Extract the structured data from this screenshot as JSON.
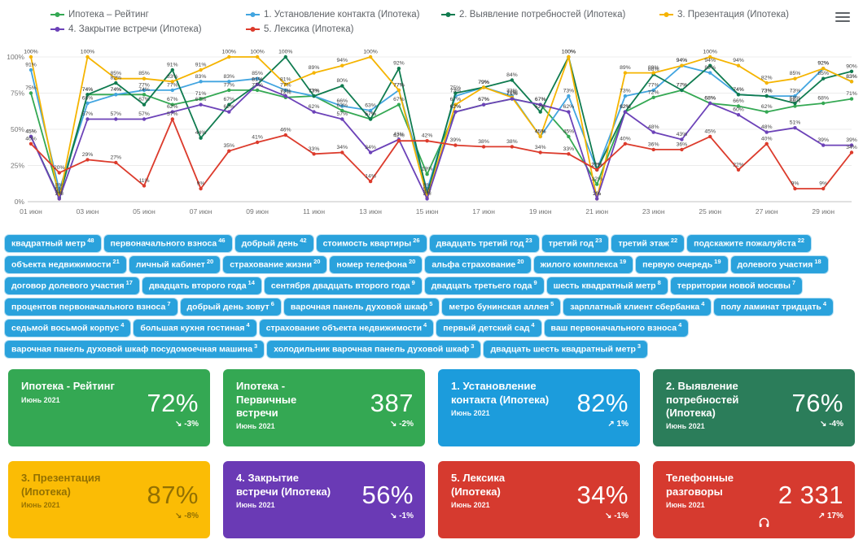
{
  "header": {
    "menu_icon": "hamburger-menu"
  },
  "chart_data": {
    "type": "line",
    "title": "",
    "xlabel": "",
    "ylabel": "",
    "ylim": [
      0,
      100
    ],
    "grid": true,
    "legend_position": "top",
    "y_tick_labels": [
      "0%",
      "25%",
      "50%",
      "75%",
      "100%"
    ],
    "x_tick_labels": [
      "01 июн",
      "03 июн",
      "05 июн",
      "07 июн",
      "09 июн",
      "11 июн",
      "13 июн",
      "15 июн",
      "17 июн",
      "19 июн",
      "21 июн",
      "23 июн",
      "25 июн",
      "27 июн",
      "29 июн"
    ],
    "series": [
      {
        "name": "Ипотека – Рейтинг",
        "color": "#34a853",
        "values": [
          75,
          5,
          74,
          74,
          74,
          67,
          71,
          77,
          77,
          72,
          73,
          63,
          57,
          67,
          19,
          62,
          67,
          71,
          67,
          45,
          12,
          62,
          72,
          77,
          68,
          66,
          62,
          66,
          68,
          71
        ]
      },
      {
        "name": "1. Установление контакта (Ипотека)",
        "color": "#42a5e0",
        "values": [
          91,
          8,
          68,
          74,
          77,
          77,
          83,
          83,
          85,
          77,
          73,
          66,
          63,
          77,
          8,
          73,
          79,
          73,
          45,
          73,
          22,
          73,
          77,
          94,
          89,
          74,
          73,
          73,
          92,
          83
        ]
      },
      {
        "name": "2. Выявление потребностей (Ипотека)",
        "color": "#0f7b4f",
        "values": [
          45,
          3,
          74,
          82,
          67,
          91,
          44,
          67,
          81,
          100,
          73,
          80,
          57,
          92,
          5,
          75,
          79,
          84,
          62,
          100,
          22,
          62,
          88,
          77,
          94,
          74,
          73,
          68,
          85,
          90
        ]
      },
      {
        "name": "3. Презентация (Ипотека)",
        "color": "#f5b400",
        "values": [
          100,
          2,
          100,
          85,
          85,
          83,
          91,
          100,
          100,
          81,
          89,
          94,
          100,
          77,
          3,
          67,
          79,
          72,
          45,
          100,
          2,
          89,
          89,
          94,
          100,
          94,
          82,
          85,
          92,
          83
        ]
      },
      {
        "name": "4. Закрытие встречи (Ипотека)",
        "color": "#6c42b8",
        "values": [
          45,
          2,
          57,
          57,
          57,
          62,
          67,
          62,
          81,
          73,
          62,
          57,
          34,
          43,
          2,
          62,
          67,
          71,
          67,
          62,
          2,
          62,
          48,
          43,
          68,
          60,
          48,
          51,
          39,
          39
        ]
      },
      {
        "name": "5. Лексика (Ипотека)",
        "color": "#dc3b2c",
        "values": [
          40,
          20,
          29,
          27,
          11,
          57,
          9,
          35,
          41,
          46,
          33,
          34,
          14,
          42,
          42,
          39,
          38,
          38,
          34,
          33,
          22,
          40,
          36,
          36,
          45,
          22,
          40,
          9,
          9,
          34
        ]
      }
    ]
  },
  "tags": [
    {
      "text": "квадратный метр",
      "count": 48
    },
    {
      "text": "первоначального взноса",
      "count": 46
    },
    {
      "text": "добрый день",
      "count": 42
    },
    {
      "text": "стоимость квартиры",
      "count": 26
    },
    {
      "text": "двадцать третий год",
      "count": 23
    },
    {
      "text": "третий год",
      "count": 23
    },
    {
      "text": "третий этаж",
      "count": 22
    },
    {
      "text": "подскажите пожалуйста",
      "count": 22
    },
    {
      "text": "объекта недвижимости",
      "count": 21
    },
    {
      "text": "личный кабинет",
      "count": 20
    },
    {
      "text": "страхование жизни",
      "count": 20
    },
    {
      "text": "номер телефона",
      "count": 20
    },
    {
      "text": "альфа страхование",
      "count": 20
    },
    {
      "text": "жилого комплекса",
      "count": 19
    },
    {
      "text": "первую очередь",
      "count": 19
    },
    {
      "text": "долевого участия",
      "count": 18
    },
    {
      "text": "договор долевого участия",
      "count": 17
    },
    {
      "text": "двадцать второго года",
      "count": 14
    },
    {
      "text": "сентября двадцать второго года",
      "count": 9
    },
    {
      "text": "двадцать третьего года",
      "count": 9
    },
    {
      "text": "шесть квадратный метр",
      "count": 8
    },
    {
      "text": "территории новой москвы",
      "count": 7
    },
    {
      "text": "процентов первоначального взноса",
      "count": 7
    },
    {
      "text": "добрый день зовут",
      "count": 6
    },
    {
      "text": "варочная панель духовой шкаф",
      "count": 5
    },
    {
      "text": "метро бунинская аллея",
      "count": 5
    },
    {
      "text": "зарплатный клиент сбербанка",
      "count": 4
    },
    {
      "text": "полу ламинат тридцать",
      "count": 4
    },
    {
      "text": "седьмой восьмой корпус",
      "count": 4
    },
    {
      "text": "большая кухня гостиная",
      "count": 4
    },
    {
      "text": "страхование объекта недвижимости",
      "count": 4
    },
    {
      "text": "первый детский сад",
      "count": 4
    },
    {
      "text": "ваш первоначального взноса",
      "count": 4
    },
    {
      "text": "варочная панель духовой шкаф посудомоечная машина",
      "count": 3
    },
    {
      "text": "холодильник варочная панель духовой шкаф",
      "count": 3
    },
    {
      "text": "двадцать шесть квадратный метр",
      "count": 3
    }
  ],
  "cards": [
    {
      "color": "#34a853",
      "title": "Ипотека - Рейтинг",
      "period": "Июнь 2021",
      "value": "72%",
      "trend": "-3%",
      "trend_dir": "down"
    },
    {
      "color": "#34a853",
      "title": "Ипотека - Первичные встречи",
      "period": "Июнь 2021",
      "value": "387",
      "trend": "-2%",
      "trend_dir": "down"
    },
    {
      "color": "#1c9cdc",
      "title": "1. Установление контакта (Ипотека)",
      "period": "Июнь 2021",
      "value": "82%",
      "trend": "1%",
      "trend_dir": "up"
    },
    {
      "color": "#2b7d5a",
      "title": "2. Выявление потребностей (Ипотека)",
      "period": "Июнь 2021",
      "value": "76%",
      "trend": "-4%",
      "trend_dir": "down"
    },
    {
      "color": "#fbbc05",
      "title": "3. Презентация (Ипотека)",
      "period": "Июнь 2021",
      "value": "87%",
      "trend": "-8%",
      "trend_dir": "down",
      "muted": true
    },
    {
      "color": "#6a3ab5",
      "title": "4. Закрытие встречи (Ипотека)",
      "period": "Июнь 2021",
      "value": "56%",
      "trend": "-1%",
      "trend_dir": "down"
    },
    {
      "color": "#d63a2f",
      "title": "5. Лексика (Ипотека)",
      "period": "Июнь 2021",
      "value": "34%",
      "trend": "-1%",
      "trend_dir": "down"
    },
    {
      "color": "#d63a2f",
      "title": "Телефонные разговоры",
      "period": "Июнь 2021",
      "value": "2 331",
      "trend": "17%",
      "trend_dir": "up",
      "icon": "headphones"
    }
  ]
}
